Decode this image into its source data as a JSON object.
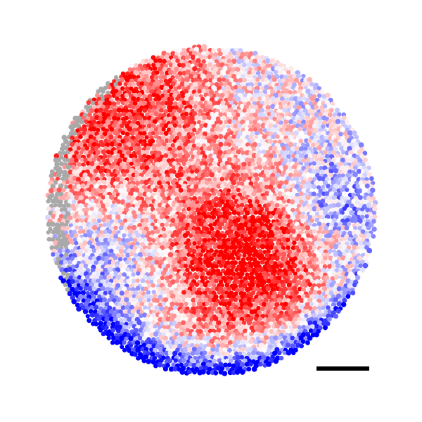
{
  "figure": {
    "kind": "spatial-scatter-heatmap",
    "colormap": {
      "low": "#0000ff",
      "mid": "#ffffff",
      "high": "#ff0000",
      "missing": "#a9a9a9"
    },
    "hotspot_region": "center-right-lower",
    "cool_region": "bottom-rim",
    "scale_bar": {
      "color": "#000000"
    }
  }
}
